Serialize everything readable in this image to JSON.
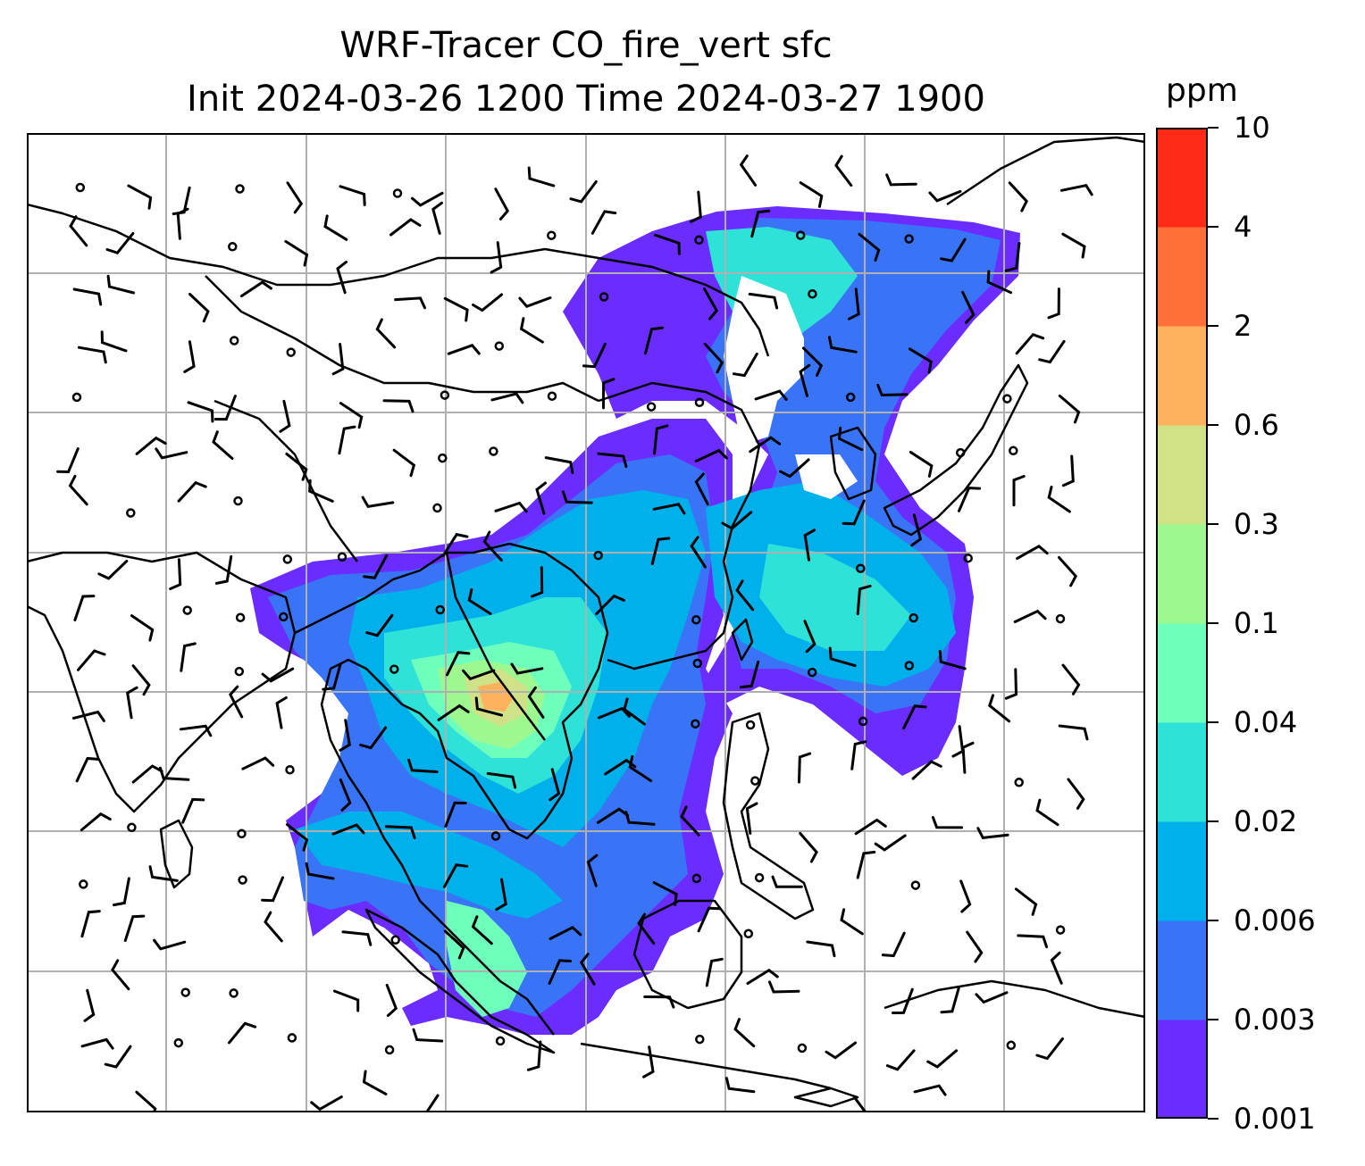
{
  "title": {
    "line1": "WRF-Tracer CO_fire_vert sfc",
    "line2": "Init 2024-03-26 1200 Time 2024-03-27 1900"
  },
  "colorbar": {
    "unit": "ppm",
    "levels": [
      "0.001",
      "0.003",
      "0.006",
      "0.02",
      "0.04",
      "0.1",
      "0.3",
      "0.6",
      "2",
      "4",
      "10"
    ],
    "colors": [
      "#6a2cff",
      "#3a74f6",
      "#00b0ea",
      "#2ee2d8",
      "#6effbd",
      "#9cf88f",
      "#cfe287",
      "#ffb15e",
      "#ff7038",
      "#ff2a17"
    ]
  },
  "map": {
    "gridline_color": "#b0b0b0",
    "coastline_color": "#000000",
    "features": [
      "coastlines",
      "country borders",
      "wind barbs",
      "calm wind circles",
      "tracer concentration field"
    ]
  }
}
